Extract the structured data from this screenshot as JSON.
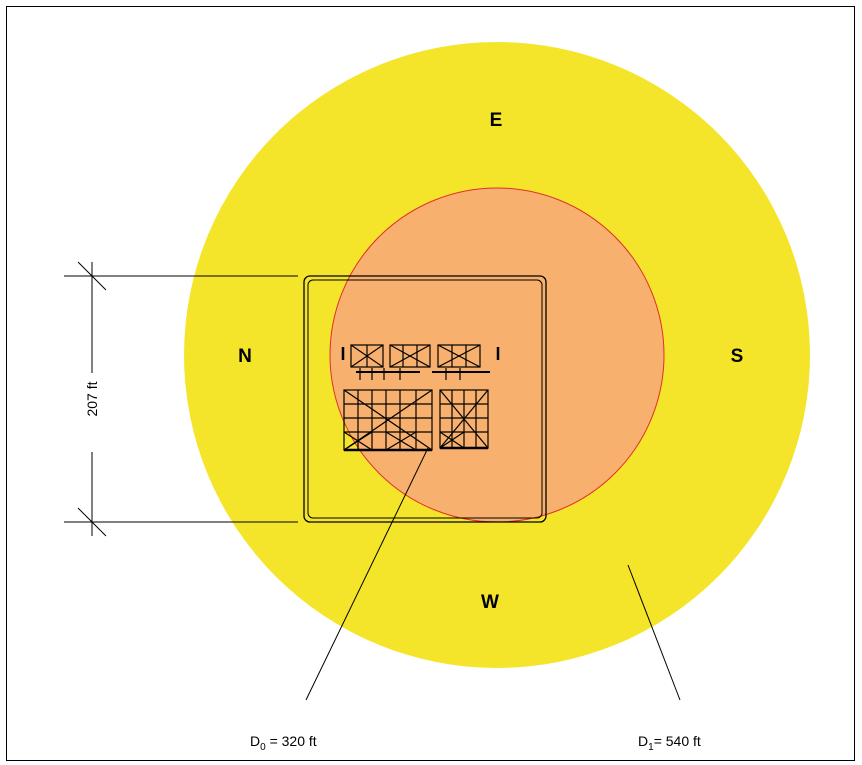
{
  "diagram": {
    "directions": {
      "north": "N",
      "south": "S",
      "east": "E",
      "west": "W"
    },
    "dimension_label": "207 ft",
    "d0": {
      "symbol": "D",
      "subscript": "0",
      "text": " = 320 ft"
    },
    "d1": {
      "symbol": "D",
      "subscript": "1",
      "text": "= 540 ft"
    },
    "colors": {
      "outer_zone": "#f5e52a",
      "inner_zone": "#f8b06e",
      "inner_outline": "#e0302a",
      "lines": "#000000"
    }
  }
}
